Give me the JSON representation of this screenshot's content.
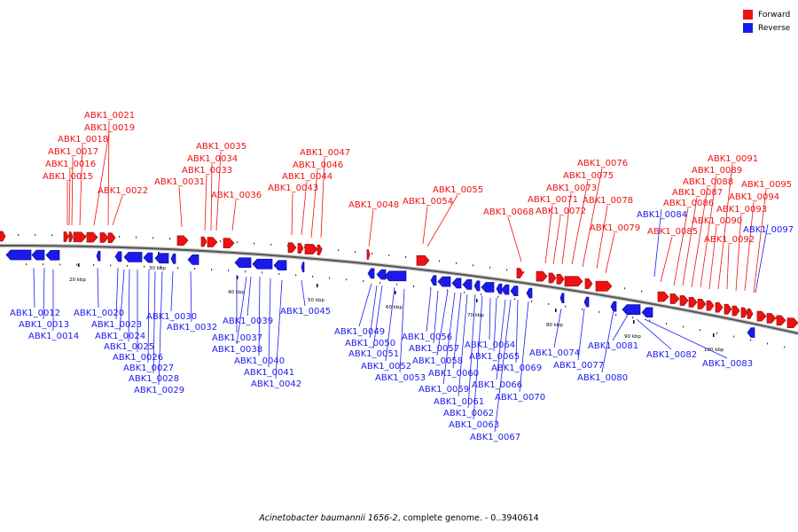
{
  "legend": {
    "forward_label": "Forward",
    "reverse_label": "Reverse",
    "forward_color": "#ee1111",
    "reverse_color": "#1a1aee"
  },
  "caption": {
    "organism": "Acinetobacter baumannii 1656-2",
    "rest": ", complete genome. - 0..3940614"
  },
  "scale": {
    "ticks": [
      "20 kbp",
      "30 kbp",
      "40 kbp",
      "50 kbp",
      "60 kbp",
      "70 kbp",
      "80 kbp",
      "90 kbp",
      "100 kbp"
    ]
  },
  "genes": [
    {
      "name": "ABK1_0015",
      "strand": "forward"
    },
    {
      "name": "ABK1_0016",
      "strand": "forward"
    },
    {
      "name": "ABK1_0017",
      "strand": "forward"
    },
    {
      "name": "ABK1_0018",
      "strand": "forward"
    },
    {
      "name": "ABK1_0019",
      "strand": "forward"
    },
    {
      "name": "ABK1_0021",
      "strand": "forward"
    },
    {
      "name": "ABK1_0022",
      "strand": "forward"
    },
    {
      "name": "ABK1_0031",
      "strand": "forward"
    },
    {
      "name": "ABK1_0033",
      "strand": "forward"
    },
    {
      "name": "ABK1_0034",
      "strand": "forward"
    },
    {
      "name": "ABK1_0035",
      "strand": "forward"
    },
    {
      "name": "ABK1_0036",
      "strand": "forward"
    },
    {
      "name": "ABK1_0043",
      "strand": "forward"
    },
    {
      "name": "ABK1_0044",
      "strand": "forward"
    },
    {
      "name": "ABK1_0046",
      "strand": "forward"
    },
    {
      "name": "ABK1_0047",
      "strand": "forward"
    },
    {
      "name": "ABK1_0048",
      "strand": "forward"
    },
    {
      "name": "ABK1_0054",
      "strand": "forward"
    },
    {
      "name": "ABK1_0055",
      "strand": "forward"
    },
    {
      "name": "ABK1_0068",
      "strand": "forward"
    },
    {
      "name": "ABK1_0071",
      "strand": "forward"
    },
    {
      "name": "ABK1_0072",
      "strand": "forward"
    },
    {
      "name": "ABK1_0073",
      "strand": "forward"
    },
    {
      "name": "ABK1_0075",
      "strand": "forward"
    },
    {
      "name": "ABK1_0076",
      "strand": "forward"
    },
    {
      "name": "ABK1_0078",
      "strand": "forward"
    },
    {
      "name": "ABK1_0079",
      "strand": "forward"
    },
    {
      "name": "ABK1_0085",
      "strand": "forward"
    },
    {
      "name": "ABK1_0086",
      "strand": "forward"
    },
    {
      "name": "ABK1_0087",
      "strand": "forward"
    },
    {
      "name": "ABK1_0088",
      "strand": "forward"
    },
    {
      "name": "ABK1_0089",
      "strand": "forward"
    },
    {
      "name": "ABK1_0090",
      "strand": "forward"
    },
    {
      "name": "ABK1_0091",
      "strand": "forward"
    },
    {
      "name": "ABK1_0092",
      "strand": "forward"
    },
    {
      "name": "ABK1_0093",
      "strand": "forward"
    },
    {
      "name": "ABK1_0094",
      "strand": "forward"
    },
    {
      "name": "ABK1_0095",
      "strand": "forward"
    },
    {
      "name": "ABK1_0012",
      "strand": "reverse"
    },
    {
      "name": "ABK1_0013",
      "strand": "reverse"
    },
    {
      "name": "ABK1_0014",
      "strand": "reverse"
    },
    {
      "name": "ABK1_0020",
      "strand": "reverse"
    },
    {
      "name": "ABK1_0023",
      "strand": "reverse"
    },
    {
      "name": "ABK1_0024",
      "strand": "reverse"
    },
    {
      "name": "ABK1_0025",
      "strand": "reverse"
    },
    {
      "name": "ABK1_0026",
      "strand": "reverse"
    },
    {
      "name": "ABK1_0027",
      "strand": "reverse"
    },
    {
      "name": "ABK1_0028",
      "strand": "reverse"
    },
    {
      "name": "ABK1_0029",
      "strand": "reverse"
    },
    {
      "name": "ABK1_0030",
      "strand": "reverse"
    },
    {
      "name": "ABK1_0032",
      "strand": "reverse"
    },
    {
      "name": "ABK1_0037",
      "strand": "reverse"
    },
    {
      "name": "ABK1_0038",
      "strand": "reverse"
    },
    {
      "name": "ABK1_0039",
      "strand": "reverse"
    },
    {
      "name": "ABK1_0040",
      "strand": "reverse"
    },
    {
      "name": "ABK1_0041",
      "strand": "reverse"
    },
    {
      "name": "ABK1_0042",
      "strand": "reverse"
    },
    {
      "name": "ABK1_0045",
      "strand": "reverse"
    },
    {
      "name": "ABK1_0049",
      "strand": "reverse"
    },
    {
      "name": "ABK1_0050",
      "strand": "reverse"
    },
    {
      "name": "ABK1_0051",
      "strand": "reverse"
    },
    {
      "name": "ABK1_0052",
      "strand": "reverse"
    },
    {
      "name": "ABK1_0053",
      "strand": "reverse"
    },
    {
      "name": "ABK1_0056",
      "strand": "reverse"
    },
    {
      "name": "ABK1_0057",
      "strand": "reverse"
    },
    {
      "name": "ABK1_0058",
      "strand": "reverse"
    },
    {
      "name": "ABK1_0059",
      "strand": "reverse"
    },
    {
      "name": "ABK1_0060",
      "strand": "reverse"
    },
    {
      "name": "ABK1_0061",
      "strand": "reverse"
    },
    {
      "name": "ABK1_0062",
      "strand": "reverse"
    },
    {
      "name": "ABK1_0063",
      "strand": "reverse"
    },
    {
      "name": "ABK1_0064",
      "strand": "reverse"
    },
    {
      "name": "ABK1_0065",
      "strand": "reverse"
    },
    {
      "name": "ABK1_0066",
      "strand": "reverse"
    },
    {
      "name": "ABK1_0067",
      "strand": "reverse"
    },
    {
      "name": "ABK1_0069",
      "strand": "reverse"
    },
    {
      "name": "ABK1_0070",
      "strand": "reverse"
    },
    {
      "name": "ABK1_0074",
      "strand": "reverse"
    },
    {
      "name": "ABK1_0077",
      "strand": "reverse"
    },
    {
      "name": "ABK1_0080",
      "strand": "reverse"
    },
    {
      "name": "ABK1_0081",
      "strand": "reverse"
    },
    {
      "name": "ABK1_0082",
      "strand": "reverse"
    },
    {
      "name": "ABK1_0083",
      "strand": "reverse"
    },
    {
      "name": "ABK1_0084",
      "strand": "reverse"
    },
    {
      "name": "ABK1_0097",
      "strand": "reverse"
    }
  ]
}
